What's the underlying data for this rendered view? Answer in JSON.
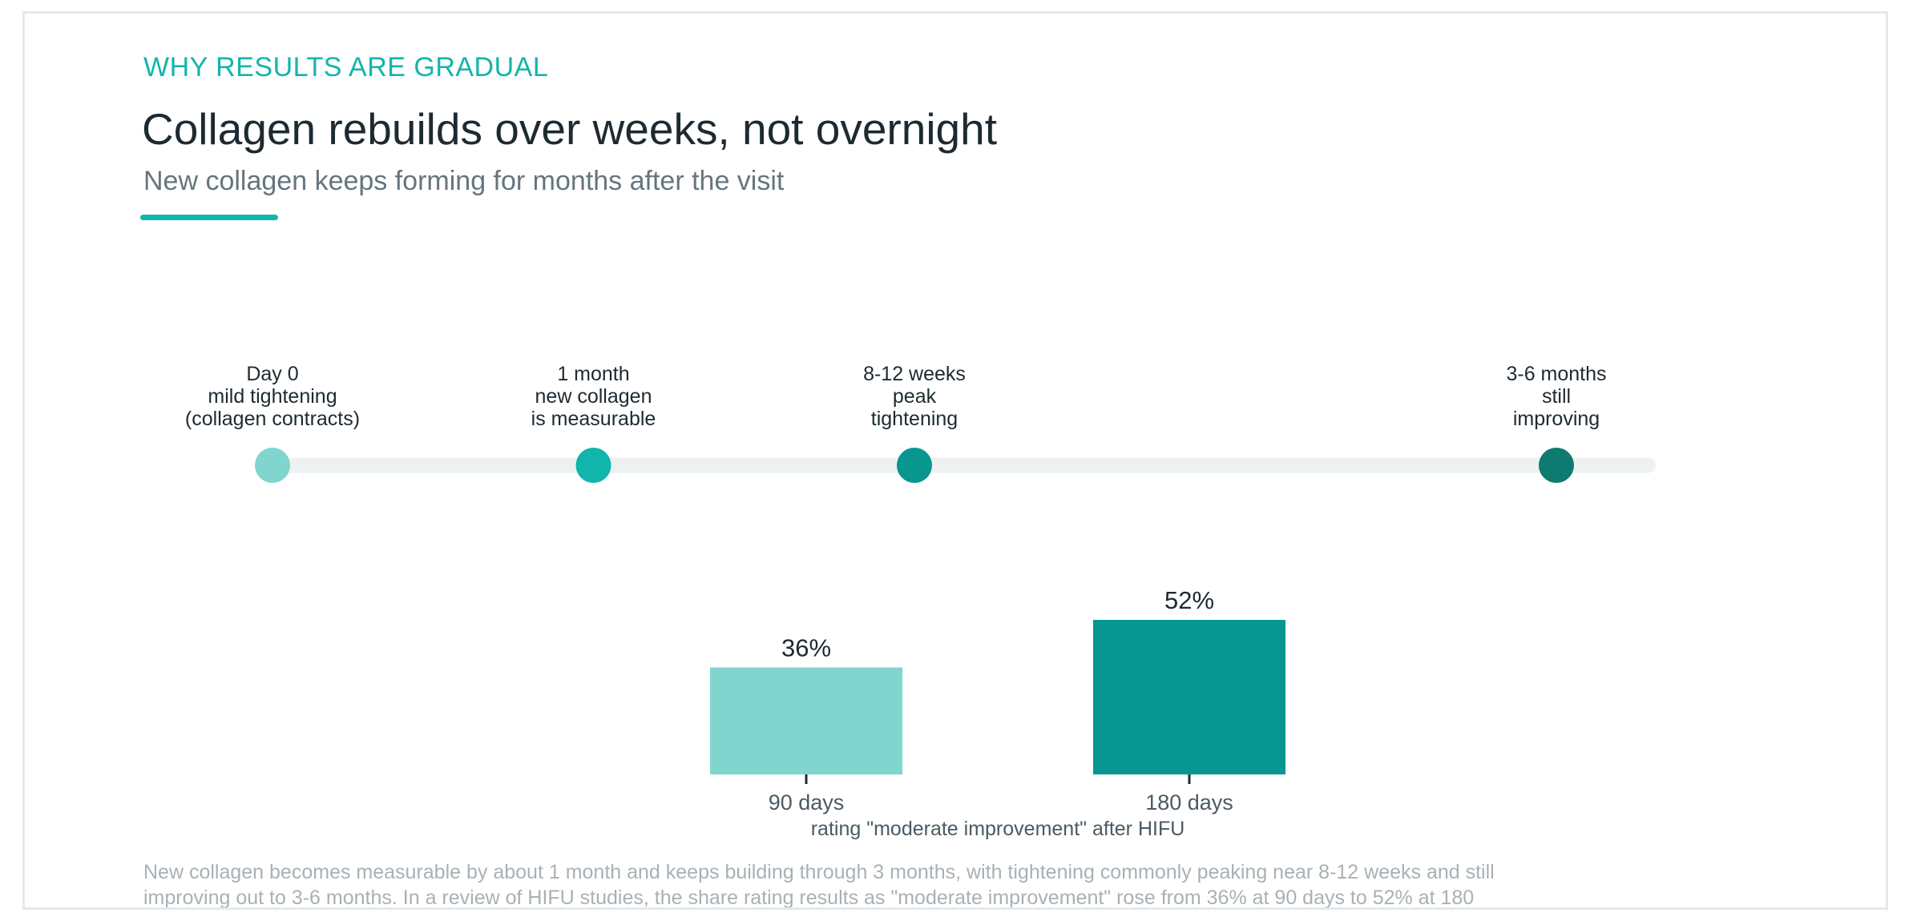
{
  "header": {
    "eyebrow": "WHY RESULTS ARE GRADUAL",
    "title": "Collagen rebuilds over weeks, not overnight",
    "subtitle": "New collagen keeps forming for months after the visit"
  },
  "timeline": {
    "milestones": [
      {
        "lines": [
          "Day 0",
          "mild tightening",
          "(collagen contracts)"
        ],
        "color": "#80d5cf",
        "time_months": 0
      },
      {
        "lines": [
          "1 month",
          "new collagen",
          "is measurable"
        ],
        "color": "#12b5ab",
        "time_months": 1
      },
      {
        "lines": [
          "8-12 weeks",
          "peak",
          "tightening"
        ],
        "color": "#089690",
        "time_months": 2
      },
      {
        "lines": [
          "3-6 months",
          "still",
          "improving"
        ],
        "color": "#0e7a70",
        "time_months": 4
      }
    ],
    "track_color": "#eef1f2"
  },
  "chart_data": {
    "type": "bar",
    "categories": [
      "90 days",
      "180 days"
    ],
    "values": [
      36,
      52
    ],
    "value_labels": [
      "36%",
      "52%"
    ],
    "colors": [
      "#80d5cf",
      "#089690"
    ],
    "xlabel": "rating \"moderate improvement\" after HIFU",
    "ylabel": "",
    "unit": "%",
    "ylim": [
      0,
      52
    ],
    "grid": false
  },
  "footnote": "New collagen becomes measurable by about 1 month and keeps building through 3 months, with tightening commonly peaking near 8-12 weeks and still\nimproving out to 3-6 months. In a review of HIFU studies, the share rating results as \"moderate improvement\" rose from 36% at 90 days to 52% at 180"
}
